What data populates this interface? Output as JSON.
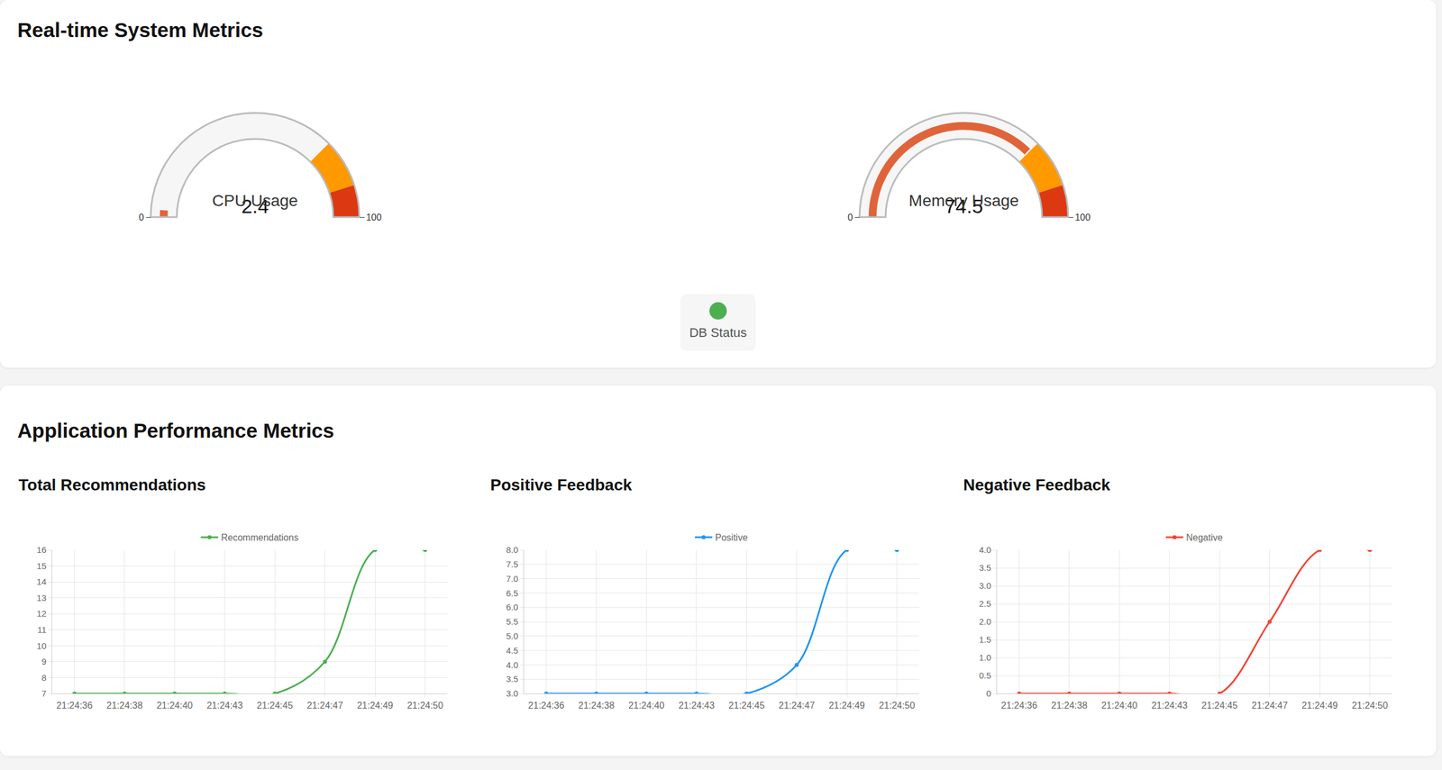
{
  "page": {
    "system_title": "Real-time System Metrics",
    "app_title": "Application Performance Metrics",
    "db_status": {
      "label": "DB Status",
      "color": "#4caf50"
    }
  },
  "chart_data": [
    {
      "type": "gauge",
      "title": "CPU Usage",
      "value": 2.4,
      "ylim": [
        0,
        100
      ],
      "yticks": [
        0,
        100
      ],
      "bands": [
        {
          "from": 75,
          "to": 90,
          "color": "#ff9900"
        },
        {
          "from": 90,
          "to": 100,
          "color": "#dc3912"
        }
      ]
    },
    {
      "type": "gauge",
      "title": "Memory Usage",
      "value": 74.5,
      "ylim": [
        0,
        100
      ],
      "yticks": [
        0,
        100
      ],
      "bands": [
        {
          "from": 75,
          "to": 90,
          "color": "#ff9900"
        },
        {
          "from": 90,
          "to": 100,
          "color": "#dc3912"
        }
      ]
    },
    {
      "type": "line",
      "title": "Total Recommendations",
      "categories": [
        "21:24:36",
        "21:24:38",
        "21:24:40",
        "21:24:43",
        "21:24:45",
        "21:24:47",
        "21:24:49",
        "21:24:50"
      ],
      "series": [
        {
          "name": "Recommendations",
          "color": "#4caf50",
          "values": [
            7,
            7,
            7,
            7,
            7,
            9,
            16,
            16
          ]
        }
      ],
      "ylim": [
        7,
        16
      ],
      "yticks": [
        7,
        8,
        9,
        10,
        11,
        12,
        13,
        14,
        15,
        16
      ],
      "grid": true,
      "legend": "top",
      "marker": "circle",
      "line_style": "smooth"
    },
    {
      "type": "line",
      "title": "Positive Feedback",
      "categories": [
        "21:24:36",
        "21:24:38",
        "21:24:40",
        "21:24:43",
        "21:24:45",
        "21:24:47",
        "21:24:49",
        "21:24:50"
      ],
      "series": [
        {
          "name": "Positive",
          "color": "#2196f3",
          "values": [
            3,
            3,
            3,
            3,
            3,
            4,
            8,
            8
          ]
        }
      ],
      "ylim": [
        3,
        8
      ],
      "yticks": [
        {
          "value": 3,
          "label": "3.0"
        },
        3.5,
        {
          "value": 4,
          "label": "4.0"
        },
        4.5,
        {
          "value": 5,
          "label": "5.0"
        },
        5.5,
        {
          "value": 6,
          "label": "6.0"
        },
        6.5,
        {
          "value": 7,
          "label": "7.0"
        },
        7.5,
        {
          "value": 8,
          "label": "8.0"
        }
      ],
      "grid": true,
      "legend": "top",
      "marker": "circle",
      "line_style": "smooth"
    },
    {
      "type": "line",
      "title": "Negative Feedback",
      "categories": [
        "21:24:36",
        "21:24:38",
        "21:24:40",
        "21:24:43",
        "21:24:45",
        "21:24:47",
        "21:24:49",
        "21:24:50"
      ],
      "series": [
        {
          "name": "Negative",
          "color": "#f44336",
          "values": [
            0,
            0,
            0,
            0,
            0,
            2,
            4,
            4
          ]
        }
      ],
      "ylim": [
        0,
        4
      ],
      "yticks": [
        0,
        0.5,
        {
          "value": 1,
          "label": "1.0"
        },
        1.5,
        {
          "value": 2,
          "label": "2.0"
        },
        2.5,
        {
          "value": 3,
          "label": "3.0"
        },
        3.5,
        {
          "value": 4,
          "label": "4.0"
        }
      ],
      "grid": true,
      "legend": "top",
      "marker": "circle",
      "line_style": "smooth"
    }
  ]
}
